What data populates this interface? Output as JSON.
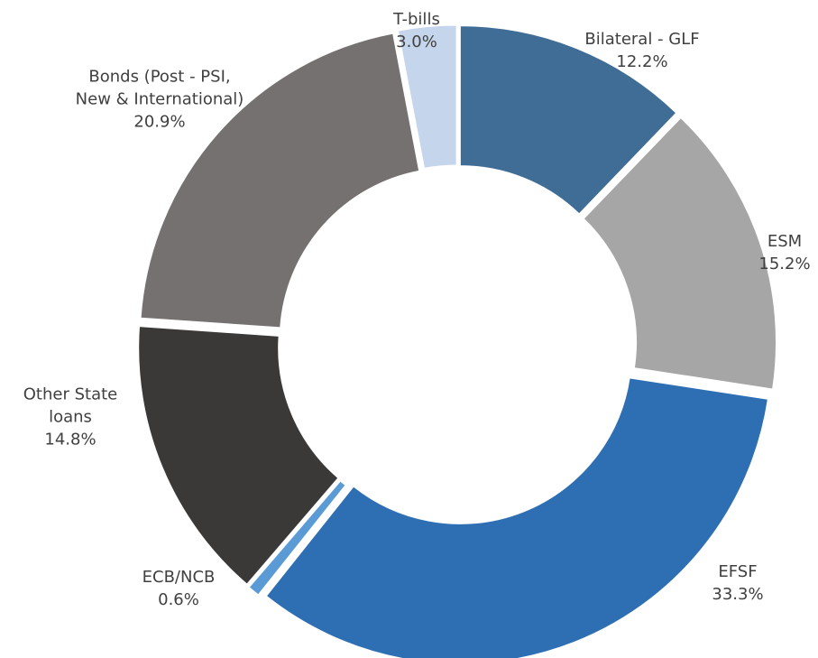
{
  "chart_data": {
    "type": "donut",
    "categories": [
      "Bilateral - GLF",
      "ESM",
      "EFSF",
      "ECB/NCB",
      "Other State loans",
      "Bonds (Post - PSI, New & International)",
      "T-bills"
    ],
    "values": [
      12.2,
      15.2,
      33.3,
      0.6,
      14.8,
      20.9,
      3.0
    ],
    "value_labels": [
      "12.2%",
      "15.2%",
      "33.3%",
      "0.6%",
      "14.8%",
      "20.9%",
      "3.0%"
    ],
    "colors": [
      "#3f6d96",
      "#a6a6a6",
      "#2e6fb3",
      "#5b9bd5",
      "#3b3938",
      "#767171",
      "#c5d6ec"
    ]
  }
}
